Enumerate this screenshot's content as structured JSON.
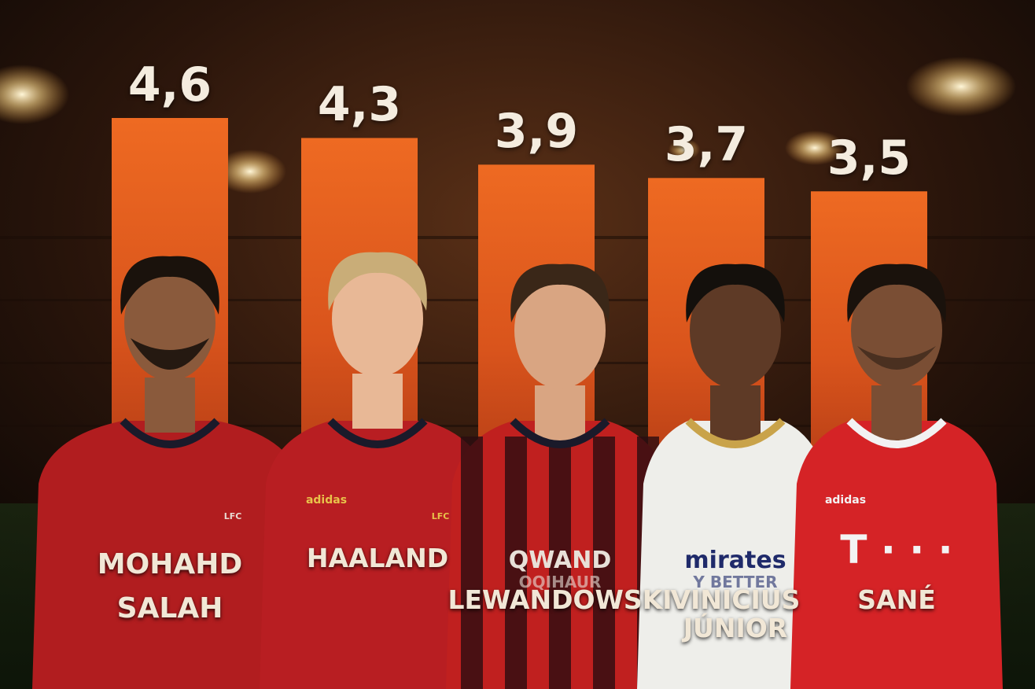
{
  "chart_data": {
    "type": "bar",
    "categories": [
      "MOHAHD SALAH",
      "HAALAND",
      "LEWANDOWSKI",
      "VINICIUS JÚNIOR",
      "SANÉ"
    ],
    "values": [
      4.6,
      4.3,
      3.9,
      3.7,
      3.5
    ],
    "value_labels": [
      "4,6",
      "4,3",
      "3,9",
      "3,7",
      "3,5"
    ],
    "bar_color": "#e8621f",
    "ylim": [
      0,
      4.6
    ],
    "grid": false,
    "title": "",
    "xlabel": "",
    "ylabel": ""
  },
  "players": [
    {
      "name_lines": [
        "MOHAHD",
        "SALAH"
      ],
      "jersey": "#b11d1f",
      "crest_text": "LFC",
      "brand_icon": "nike-swoosh-icon"
    },
    {
      "name_lines": [
        "HAALAND"
      ],
      "jersey": "#b81e22",
      "brand_text": "adidas",
      "crest_text": "LFC",
      "brand_icon": "adidas-stripes-icon"
    },
    {
      "name_lines": [
        "LEWANDOWSKI"
      ],
      "jersey": "#c0201f",
      "sponsor_text": "QWAND",
      "sponsor_sub": "OQIHAUR",
      "brand_icon": "barca-crest-icon"
    },
    {
      "name_lines": [
        "VINICIUS",
        "JÚNIOR"
      ],
      "jersey": "#eeeeea",
      "sponsor_text": "mirates",
      "sponsor_sub": "Y BETTER",
      "brand_icon": "madrid-crest-icon"
    },
    {
      "name_lines": [
        "SANÉ"
      ],
      "jersey": "#d52326",
      "brand_text": "adidas",
      "sponsor_text": "T · · ·",
      "brand_icon": "bayern-crest-icon"
    }
  ]
}
